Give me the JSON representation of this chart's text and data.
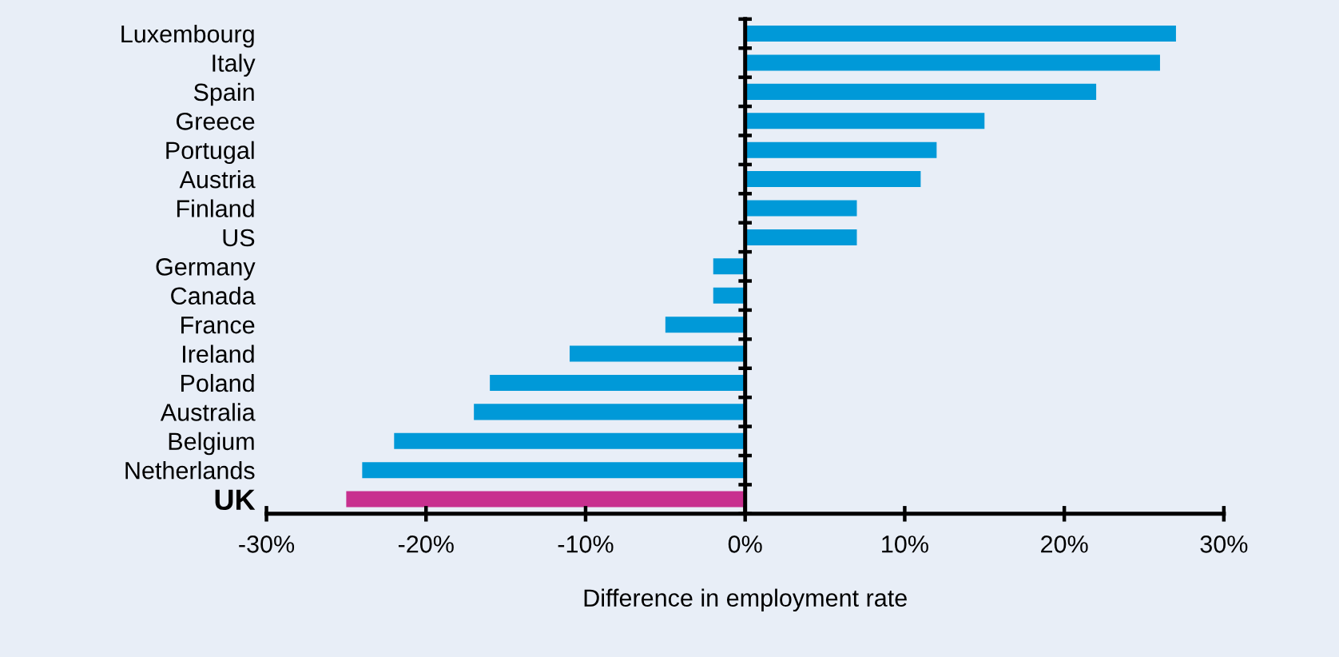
{
  "chart_data": {
    "type": "bar",
    "orientation": "horizontal",
    "xlabel": "Difference in employment rate",
    "categories": [
      "Luxembourg",
      "Italy",
      "Spain",
      "Greece",
      "Portugal",
      "Austria",
      "Finland",
      "US",
      "Germany",
      "Canada",
      "France",
      "Ireland",
      "Poland",
      "Australia",
      "Belgium",
      "Netherlands",
      "UK"
    ],
    "values": [
      27,
      26,
      22,
      15,
      12,
      11,
      7,
      7,
      -2,
      -2,
      -5,
      -11,
      -16,
      -17,
      -22,
      -24,
      -25
    ],
    "colors": [
      "#0099d8",
      "#0099d8",
      "#0099d8",
      "#0099d8",
      "#0099d8",
      "#0099d8",
      "#0099d8",
      "#0099d8",
      "#0099d8",
      "#0099d8",
      "#0099d8",
      "#0099d8",
      "#0099d8",
      "#0099d8",
      "#0099d8",
      "#0099d8",
      "#c8308f"
    ],
    "xlim": [
      -30,
      30
    ],
    "xticks": [
      {
        "value": -30,
        "label": "-30%"
      },
      {
        "value": -20,
        "label": "-20%"
      },
      {
        "value": -10,
        "label": "-10%"
      },
      {
        "value": 0,
        "label": "0%"
      },
      {
        "value": 10,
        "label": "10%"
      },
      {
        "value": 20,
        "label": "20%"
      },
      {
        "value": 30,
        "label": "30%"
      }
    ],
    "tick_labels": "xy"
  }
}
